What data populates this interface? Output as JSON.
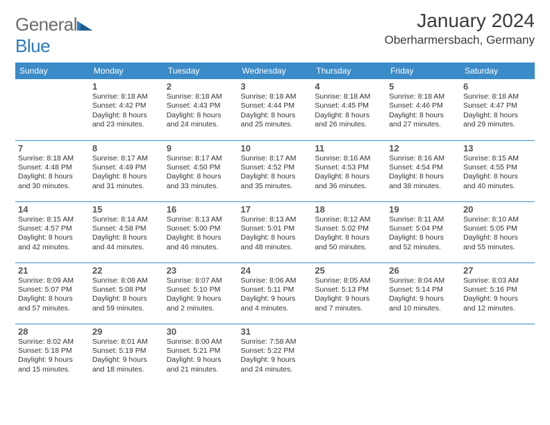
{
  "logo": {
    "general": "General",
    "blue": "Blue"
  },
  "title": "January 2024",
  "location": "Oberharmersbach, Germany",
  "header_bg": "#3b8bc8",
  "header_fg": "#ffffff",
  "divider_color": "#3b8bc8",
  "text_color": "#333333",
  "daynum_color": "#555555",
  "font_family": "Arial, Helvetica, sans-serif",
  "day_headers": [
    "Sunday",
    "Monday",
    "Tuesday",
    "Wednesday",
    "Thursday",
    "Friday",
    "Saturday"
  ],
  "weeks": [
    [
      null,
      {
        "n": "1",
        "sr": "Sunrise: 8:18 AM",
        "ss": "Sunset: 4:42 PM",
        "d1": "Daylight: 8 hours",
        "d2": "and 23 minutes."
      },
      {
        "n": "2",
        "sr": "Sunrise: 8:18 AM",
        "ss": "Sunset: 4:43 PM",
        "d1": "Daylight: 8 hours",
        "d2": "and 24 minutes."
      },
      {
        "n": "3",
        "sr": "Sunrise: 8:18 AM",
        "ss": "Sunset: 4:44 PM",
        "d1": "Daylight: 8 hours",
        "d2": "and 25 minutes."
      },
      {
        "n": "4",
        "sr": "Sunrise: 8:18 AM",
        "ss": "Sunset: 4:45 PM",
        "d1": "Daylight: 8 hours",
        "d2": "and 26 minutes."
      },
      {
        "n": "5",
        "sr": "Sunrise: 8:18 AM",
        "ss": "Sunset: 4:46 PM",
        "d1": "Daylight: 8 hours",
        "d2": "and 27 minutes."
      },
      {
        "n": "6",
        "sr": "Sunrise: 8:18 AM",
        "ss": "Sunset: 4:47 PM",
        "d1": "Daylight: 8 hours",
        "d2": "and 29 minutes."
      }
    ],
    [
      {
        "n": "7",
        "sr": "Sunrise: 8:18 AM",
        "ss": "Sunset: 4:48 PM",
        "d1": "Daylight: 8 hours",
        "d2": "and 30 minutes."
      },
      {
        "n": "8",
        "sr": "Sunrise: 8:17 AM",
        "ss": "Sunset: 4:49 PM",
        "d1": "Daylight: 8 hours",
        "d2": "and 31 minutes."
      },
      {
        "n": "9",
        "sr": "Sunrise: 8:17 AM",
        "ss": "Sunset: 4:50 PM",
        "d1": "Daylight: 8 hours",
        "d2": "and 33 minutes."
      },
      {
        "n": "10",
        "sr": "Sunrise: 8:17 AM",
        "ss": "Sunset: 4:52 PM",
        "d1": "Daylight: 8 hours",
        "d2": "and 35 minutes."
      },
      {
        "n": "11",
        "sr": "Sunrise: 8:16 AM",
        "ss": "Sunset: 4:53 PM",
        "d1": "Daylight: 8 hours",
        "d2": "and 36 minutes."
      },
      {
        "n": "12",
        "sr": "Sunrise: 8:16 AM",
        "ss": "Sunset: 4:54 PM",
        "d1": "Daylight: 8 hours",
        "d2": "and 38 minutes."
      },
      {
        "n": "13",
        "sr": "Sunrise: 8:15 AM",
        "ss": "Sunset: 4:55 PM",
        "d1": "Daylight: 8 hours",
        "d2": "and 40 minutes."
      }
    ],
    [
      {
        "n": "14",
        "sr": "Sunrise: 8:15 AM",
        "ss": "Sunset: 4:57 PM",
        "d1": "Daylight: 8 hours",
        "d2": "and 42 minutes."
      },
      {
        "n": "15",
        "sr": "Sunrise: 8:14 AM",
        "ss": "Sunset: 4:58 PM",
        "d1": "Daylight: 8 hours",
        "d2": "and 44 minutes."
      },
      {
        "n": "16",
        "sr": "Sunrise: 8:13 AM",
        "ss": "Sunset: 5:00 PM",
        "d1": "Daylight: 8 hours",
        "d2": "and 46 minutes."
      },
      {
        "n": "17",
        "sr": "Sunrise: 8:13 AM",
        "ss": "Sunset: 5:01 PM",
        "d1": "Daylight: 8 hours",
        "d2": "and 48 minutes."
      },
      {
        "n": "18",
        "sr": "Sunrise: 8:12 AM",
        "ss": "Sunset: 5:02 PM",
        "d1": "Daylight: 8 hours",
        "d2": "and 50 minutes."
      },
      {
        "n": "19",
        "sr": "Sunrise: 8:11 AM",
        "ss": "Sunset: 5:04 PM",
        "d1": "Daylight: 8 hours",
        "d2": "and 52 minutes."
      },
      {
        "n": "20",
        "sr": "Sunrise: 8:10 AM",
        "ss": "Sunset: 5:05 PM",
        "d1": "Daylight: 8 hours",
        "d2": "and 55 minutes."
      }
    ],
    [
      {
        "n": "21",
        "sr": "Sunrise: 8:09 AM",
        "ss": "Sunset: 5:07 PM",
        "d1": "Daylight: 8 hours",
        "d2": "and 57 minutes."
      },
      {
        "n": "22",
        "sr": "Sunrise: 8:08 AM",
        "ss": "Sunset: 5:08 PM",
        "d1": "Daylight: 8 hours",
        "d2": "and 59 minutes."
      },
      {
        "n": "23",
        "sr": "Sunrise: 8:07 AM",
        "ss": "Sunset: 5:10 PM",
        "d1": "Daylight: 9 hours",
        "d2": "and 2 minutes."
      },
      {
        "n": "24",
        "sr": "Sunrise: 8:06 AM",
        "ss": "Sunset: 5:11 PM",
        "d1": "Daylight: 9 hours",
        "d2": "and 4 minutes."
      },
      {
        "n": "25",
        "sr": "Sunrise: 8:05 AM",
        "ss": "Sunset: 5:13 PM",
        "d1": "Daylight: 9 hours",
        "d2": "and 7 minutes."
      },
      {
        "n": "26",
        "sr": "Sunrise: 8:04 AM",
        "ss": "Sunset: 5:14 PM",
        "d1": "Daylight: 9 hours",
        "d2": "and 10 minutes."
      },
      {
        "n": "27",
        "sr": "Sunrise: 8:03 AM",
        "ss": "Sunset: 5:16 PM",
        "d1": "Daylight: 9 hours",
        "d2": "and 12 minutes."
      }
    ],
    [
      {
        "n": "28",
        "sr": "Sunrise: 8:02 AM",
        "ss": "Sunset: 5:18 PM",
        "d1": "Daylight: 9 hours",
        "d2": "and 15 minutes."
      },
      {
        "n": "29",
        "sr": "Sunrise: 8:01 AM",
        "ss": "Sunset: 5:19 PM",
        "d1": "Daylight: 9 hours",
        "d2": "and 18 minutes."
      },
      {
        "n": "30",
        "sr": "Sunrise: 8:00 AM",
        "ss": "Sunset: 5:21 PM",
        "d1": "Daylight: 9 hours",
        "d2": "and 21 minutes."
      },
      {
        "n": "31",
        "sr": "Sunrise: 7:58 AM",
        "ss": "Sunset: 5:22 PM",
        "d1": "Daylight: 9 hours",
        "d2": "and 24 minutes."
      },
      null,
      null,
      null
    ]
  ]
}
